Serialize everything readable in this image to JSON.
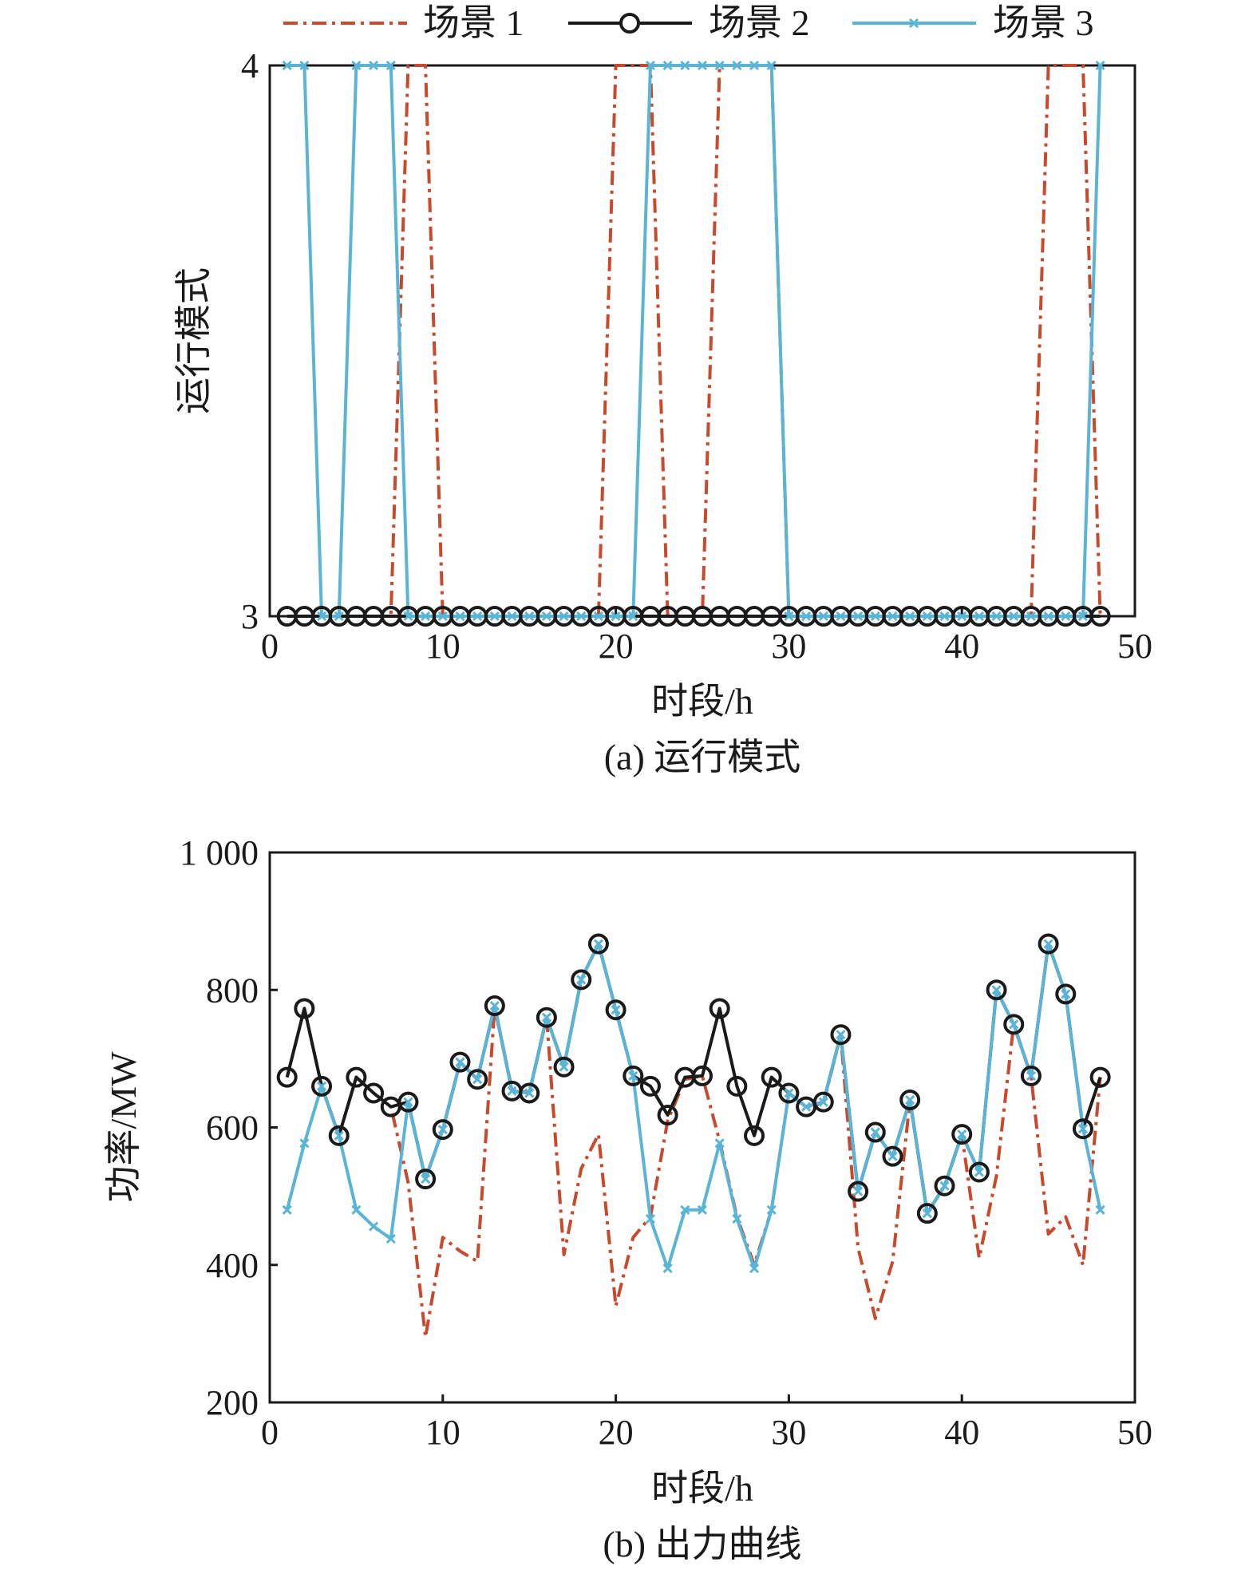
{
  "colors": {
    "scenario1": "#c8492b",
    "scenario2": "#1a1a1a",
    "scenario3": "#5ab4d6"
  },
  "legend": [
    {
      "label": "场景 1",
      "style": "dash-dot"
    },
    {
      "label": "场景 2",
      "style": "circle-marker"
    },
    {
      "label": "场景 3",
      "style": "x-marker"
    }
  ],
  "chart_data": [
    {
      "type": "line",
      "caption": "(a) 运行模式",
      "xlabel": "时段/h",
      "ylabel": "运行模式",
      "xlim": [
        0,
        50
      ],
      "ylim": [
        3,
        4
      ],
      "xticks": [
        "0",
        "10",
        "20",
        "30",
        "40",
        "50"
      ],
      "yticks": [
        "3",
        "4"
      ],
      "x": [
        1,
        2,
        3,
        4,
        5,
        6,
        7,
        8,
        9,
        10,
        11,
        12,
        13,
        14,
        15,
        16,
        17,
        18,
        19,
        20,
        21,
        22,
        23,
        24,
        25,
        26,
        27,
        28,
        29,
        30,
        31,
        32,
        33,
        34,
        35,
        36,
        37,
        38,
        39,
        40,
        41,
        42,
        43,
        44,
        45,
        46,
        47,
        48
      ],
      "series": [
        {
          "name": "场景 1",
          "values": [
            3,
            3,
            3,
            3,
            3,
            3,
            3,
            4,
            4,
            3,
            3,
            3,
            3,
            3,
            3,
            3,
            3,
            3,
            3,
            4,
            4,
            4,
            3,
            3,
            3,
            4,
            4,
            4,
            4,
            3,
            3,
            3,
            3,
            3,
            3,
            3,
            3,
            3,
            3,
            3,
            3,
            3,
            3,
            3,
            4,
            4,
            4,
            3
          ]
        },
        {
          "name": "场景 2",
          "values": [
            3,
            3,
            3,
            3,
            3,
            3,
            3,
            3,
            3,
            3,
            3,
            3,
            3,
            3,
            3,
            3,
            3,
            3,
            3,
            3,
            3,
            3,
            3,
            3,
            3,
            3,
            3,
            3,
            3,
            3,
            3,
            3,
            3,
            3,
            3,
            3,
            3,
            3,
            3,
            3,
            3,
            3,
            3,
            3,
            3,
            3,
            3,
            3
          ]
        },
        {
          "name": "场景 3",
          "values": [
            4,
            4,
            3,
            3,
            4,
            4,
            4,
            3,
            3,
            3,
            3,
            3,
            3,
            3,
            3,
            3,
            3,
            3,
            3,
            3,
            3,
            4,
            4,
            4,
            4,
            4,
            4,
            4,
            4,
            3,
            3,
            3,
            3,
            3,
            3,
            3,
            3,
            3,
            3,
            3,
            3,
            3,
            3,
            3,
            3,
            3,
            3,
            4
          ]
        }
      ]
    },
    {
      "type": "line",
      "caption": "(b) 出力曲线",
      "xlabel": "时段/h",
      "ylabel": "功率/MW",
      "xlim": [
        0,
        50
      ],
      "ylim": [
        200,
        1000
      ],
      "xticks": [
        "0",
        "10",
        "20",
        "30",
        "40",
        "50"
      ],
      "ytick_values": [
        200,
        400,
        600,
        800,
        1000
      ],
      "yticks": [
        "200",
        "400",
        "600",
        "800",
        "1 000"
      ],
      "x": [
        1,
        2,
        3,
        4,
        5,
        6,
        7,
        8,
        9,
        10,
        11,
        12,
        13,
        14,
        15,
        16,
        17,
        18,
        19,
        20,
        21,
        22,
        23,
        24,
        25,
        26,
        27,
        28,
        29,
        30,
        31,
        32,
        33,
        34,
        35,
        36,
        37,
        38,
        39,
        40,
        41,
        42,
        43,
        44,
        45,
        46,
        47,
        48
      ],
      "series": [
        {
          "name": "场景 1",
          "values": [
            673,
            773,
            660,
            588,
            673,
            650,
            630,
            520,
            295,
            440,
            420,
            405,
            775,
            655,
            650,
            760,
            415,
            540,
            590,
            340,
            440,
            470,
            610,
            670,
            675,
            580,
            470,
            400,
            480,
            650,
            630,
            635,
            735,
            425,
            322,
            405,
            640,
            475,
            515,
            590,
            410,
            530,
            750,
            675,
            445,
            470,
            400,
            673
          ]
        },
        {
          "name": "场景 2",
          "values": [
            673,
            773,
            660,
            588,
            673,
            650,
            630,
            637,
            525,
            597,
            695,
            670,
            777,
            653,
            650,
            760,
            688,
            815,
            867,
            771,
            675,
            660,
            618,
            673,
            675,
            773,
            660,
            588,
            673,
            650,
            630,
            637,
            735,
            507,
            593,
            558,
            640,
            475,
            515,
            590,
            535,
            800,
            750,
            675,
            867,
            794,
            598,
            673
          ]
        },
        {
          "name": "场景 3",
          "values": [
            480,
            577,
            660,
            588,
            480,
            456,
            438,
            637,
            525,
            597,
            695,
            670,
            777,
            653,
            650,
            760,
            688,
            815,
            867,
            771,
            675,
            467,
            395,
            480,
            480,
            577,
            467,
            395,
            480,
            650,
            630,
            637,
            735,
            507,
            593,
            558,
            640,
            475,
            515,
            590,
            535,
            800,
            750,
            675,
            867,
            794,
            598,
            480
          ]
        }
      ]
    }
  ]
}
